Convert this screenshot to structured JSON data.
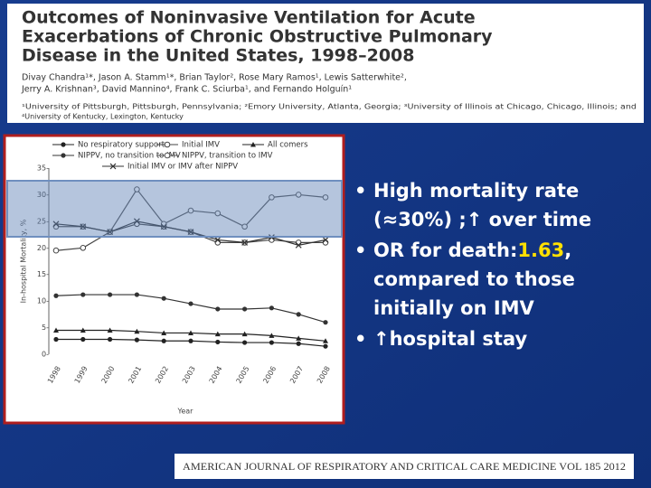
{
  "header": {
    "title": "Outcomes of Noninvasive Ventilation for Acute Exacerbations of Chronic Obstructive Pulmonary Disease in the United States, 1998–2008",
    "title_lines": [
      "Outcomes of Noninvasive Ventilation for Acute",
      "Exacerbations of Chronic Obstructive Pulmonary",
      "Disease in the United States, 1998–2008"
    ],
    "author_lines": [
      "Divay Chandra¹*, Jason A. Stamm¹*, Brian Taylor², Rose Mary Ramos¹, Lewis Satterwhite²,",
      "Jerry A. Krishnan³, David Mannino⁴, Frank C. Sciurba¹, and Fernando Holguín¹"
    ],
    "affiliation_lines": [
      "¹University of Pittsburgh, Pittsburgh, Pennsylvania; ²Emory University, Atlanta, Georgia; ³University of Illinois at Chicago, Chicago, Illinois; and",
      "⁴University of Kentucky, Lexington, Kentucky"
    ]
  },
  "chart_data": {
    "type": "line",
    "x_label": "Year",
    "y_label": "In-hospital Mortality, %",
    "categories": [
      "1998",
      "1999",
      "2000",
      "2001",
      "2002",
      "2003",
      "2004",
      "2005",
      "2006",
      "2007",
      "2008"
    ],
    "ylim": [
      0,
      35
    ],
    "yticks": [
      {
        "value": 0,
        "label": "0-"
      },
      {
        "value": 5,
        "label": "5-"
      },
      {
        "value": 10,
        "label": "10-"
      },
      {
        "value": 15,
        "label": "15-"
      },
      {
        "value": 20,
        "label": "20-"
      },
      {
        "value": 25,
        "label": "25-"
      },
      {
        "value": 30,
        "label": "30-"
      },
      {
        "value": 35,
        "label": "35-"
      }
    ],
    "series": [
      {
        "name": "No respiratory support",
        "color": "#222222",
        "marker": "filled-circle",
        "values": [
          2.8,
          2.8,
          2.8,
          2.7,
          2.5,
          2.5,
          2.3,
          2.2,
          2.2,
          2.0,
          1.5
        ]
      },
      {
        "name": "Initial IMV",
        "color": "#444444",
        "marker": "open-circle",
        "values": [
          19.5,
          20,
          23,
          24.5,
          24,
          23,
          21,
          21,
          21.5,
          21,
          21
        ]
      },
      {
        "name": "All comers",
        "color": "#222222",
        "marker": "triangle",
        "values": [
          4.5,
          4.5,
          4.5,
          4.3,
          4.0,
          4.0,
          3.8,
          3.8,
          3.5,
          3.0,
          2.5
        ]
      },
      {
        "name": "NIPPV, no transition to IMV",
        "color": "#333333",
        "marker": "filled-circle",
        "values": [
          11,
          11.2,
          11.2,
          11.2,
          10.5,
          9.5,
          8.5,
          8.5,
          8.7,
          7.5,
          6
        ]
      },
      {
        "name": "NIPPV, transition to IMV",
        "color": "#555555",
        "marker": "open-circle",
        "values": [
          24,
          24,
          23,
          31,
          24.5,
          27,
          26.5,
          24,
          29.5,
          30,
          29.5
        ]
      },
      {
        "name": "Initial IMV or IMV after NIPPV",
        "color": "#333333",
        "marker": "x",
        "values": [
          24.5,
          24,
          23,
          25,
          24,
          23,
          21.5,
          21,
          22,
          20.5,
          21.5
        ]
      }
    ]
  },
  "bullets": [
    {
      "lines": [
        "High mortality rate",
        "(≈30%) ;↑ over time"
      ]
    },
    {
      "lead": "OR for death:",
      "value": "1.63",
      "tail": ",",
      "lines": [
        "compared to those",
        "initially on IMV"
      ]
    },
    {
      "lines": [
        "↑hospital stay"
      ]
    }
  ],
  "footer": "AMERICAN JOURNAL OF RESPIRATORY AND CRITICAL CARE MEDICINE   VOL 185   2012"
}
